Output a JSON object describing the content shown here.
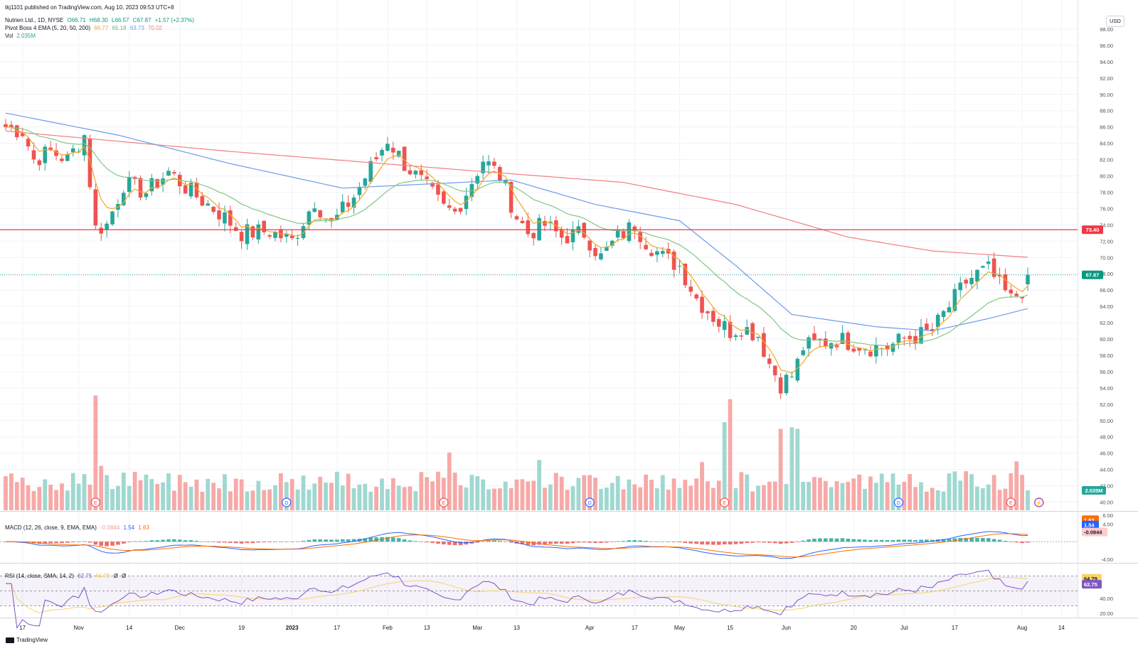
{
  "header": {
    "published": "tkj1101 published on TradingView.com, Aug 10, 2023 09:53 UTC+8",
    "symbol": "Nutrien Ltd., 1D, NYSE",
    "open": "O66.71",
    "high": "H68.30",
    "low": "L66.57",
    "close": "C67.87",
    "change": "+1.57 (+2.37%)",
    "ema_label": "Pivot Boss 4 EMA (5, 20, 50, 200)",
    "ema_values": [
      "66.77",
      "65.18",
      "63.73",
      "70.02"
    ],
    "vol_label": "Vol",
    "vol_value": "2.035M",
    "currency": "USD"
  },
  "macd_header": {
    "label": "MACD (12, 26, close, 9, EMA, EMA)",
    "values": [
      "-0.0844",
      "1.54",
      "1.63"
    ]
  },
  "rsi_header": {
    "label": "RSI (14, close, SMA, 14, 2)",
    "values": [
      "62.75",
      "64.79",
      "Ø",
      "Ø"
    ]
  },
  "footer": {
    "brand": "TradingView"
  },
  "colors": {
    "up": "#26a69a",
    "down": "#ef5350",
    "ema5": "#f5a623",
    "ema20": "#81c784",
    "ema50": "#6c9bea",
    "ema200": "#f27f7f",
    "hline": "#f23645",
    "rsi": "#7e57c2",
    "rsi_ma": "#f6d36a"
  },
  "chart_data": [
    {
      "type": "candlestick",
      "ylim": [
        39,
        100
      ],
      "y_ticks": [
        "98.00",
        "96.00",
        "94.00",
        "92.00",
        "90.00",
        "88.00",
        "86.00",
        "84.00",
        "82.00",
        "80.00",
        "78.00",
        "76.00",
        "74.00",
        "72.00",
        "70.00",
        "68.00",
        "66.00",
        "64.00",
        "62.00",
        "60.00",
        "58.00",
        "56.00",
        "54.00",
        "52.00",
        "50.00",
        "48.00",
        "46.00",
        "44.00",
        "42.00",
        "40.00"
      ],
      "x_labels": [
        {
          "label": "17",
          "i": 3
        },
        {
          "label": "Nov",
          "i": 13
        },
        {
          "label": "14",
          "i": 22
        },
        {
          "label": "Dec",
          "i": 31
        },
        {
          "label": "19",
          "i": 42
        },
        {
          "label": "2023",
          "i": 51
        },
        {
          "label": "17",
          "i": 59
        },
        {
          "label": "Feb",
          "i": 68
        },
        {
          "label": "13",
          "i": 75
        },
        {
          "label": "Mar",
          "i": 84
        },
        {
          "label": "13",
          "i": 91
        },
        {
          "label": "Apr",
          "i": 104
        },
        {
          "label": "17",
          "i": 112
        },
        {
          "label": "May",
          "i": 120
        },
        {
          "label": "15",
          "i": 129
        },
        {
          "label": "Jun",
          "i": 139
        },
        {
          "label": "20",
          "i": 151
        },
        {
          "label": "Jul",
          "i": 160
        },
        {
          "label": "17",
          "i": 169
        },
        {
          "label": "Aug",
          "i": 181
        },
        {
          "label": "14",
          "i": 188
        }
      ],
      "close_keypoints": [
        [
          0,
          86.0
        ],
        [
          3,
          85.5
        ],
        [
          5,
          82.0
        ],
        [
          8,
          83.0
        ],
        [
          11,
          82.0
        ],
        [
          14,
          85.0
        ],
        [
          16,
          73.5
        ],
        [
          18,
          74.0
        ],
        [
          21,
          79.0
        ],
        [
          25,
          78.0
        ],
        [
          29,
          80.5
        ],
        [
          33,
          78.0
        ],
        [
          38,
          75.5
        ],
        [
          42,
          73.0
        ],
        [
          47,
          73.2
        ],
        [
          51,
          72.0
        ],
        [
          55,
          77.0
        ],
        [
          58,
          74.0
        ],
        [
          62,
          77.5
        ],
        [
          65,
          81.0
        ],
        [
          68,
          84.5
        ],
        [
          71,
          81.5
        ],
        [
          75,
          78.5
        ],
        [
          78,
          76.0
        ],
        [
          80,
          75.5
        ],
        [
          82,
          78.0
        ],
        [
          85,
          82.0
        ],
        [
          88,
          80.0
        ],
        [
          91,
          75.0
        ],
        [
          93,
          73.0
        ],
        [
          96,
          74.0
        ],
        [
          99,
          72.5
        ],
        [
          103,
          73.0
        ],
        [
          106,
          70.0
        ],
        [
          109,
          72.5
        ],
        [
          112,
          74.0
        ],
        [
          114,
          72.0
        ],
        [
          117,
          70.0
        ],
        [
          120,
          69.0
        ],
        [
          123,
          65.0
        ],
        [
          125,
          63.5
        ],
        [
          127,
          62.0
        ],
        [
          129,
          61.0
        ],
        [
          131,
          61.5
        ],
        [
          134,
          60.5
        ],
        [
          136,
          57.0
        ],
        [
          138,
          54.5
        ],
        [
          140,
          55.5
        ],
        [
          141,
          57.0
        ],
        [
          142,
          59.0
        ],
        [
          145,
          59.5
        ],
        [
          148,
          60.0
        ],
        [
          151,
          59.5
        ],
        [
          154,
          59.0
        ],
        [
          157,
          59.0
        ],
        [
          160,
          60.0
        ],
        [
          163,
          60.5
        ],
        [
          165,
          61.0
        ],
        [
          167,
          63.0
        ],
        [
          169,
          65.0
        ],
        [
          171,
          67.0
        ],
        [
          173,
          68.0
        ],
        [
          175,
          68.5
        ],
        [
          177,
          66.5
        ],
        [
          179,
          64.8
        ],
        [
          181,
          66.0
        ],
        [
          182,
          67.87
        ]
      ],
      "ema_values_last": {
        "ema5": 66.77,
        "ema20": 65.18,
        "ema50": 63.73,
        "ema200": 70.02
      },
      "ema200_path": [
        [
          0,
          85.5
        ],
        [
          40,
          83.0
        ],
        [
          80,
          80.8
        ],
        [
          110,
          79.2
        ],
        [
          130,
          76.5
        ],
        [
          150,
          72.5
        ],
        [
          165,
          70.8
        ],
        [
          182,
          70.02
        ]
      ],
      "ema50_path": [
        [
          0,
          87.7
        ],
        [
          20,
          85.0
        ],
        [
          40,
          81.5
        ],
        [
          60,
          78.5
        ],
        [
          75,
          79.0
        ],
        [
          90,
          79.5
        ],
        [
          105,
          76.5
        ],
        [
          120,
          74.5
        ],
        [
          130,
          69.0
        ],
        [
          140,
          63.0
        ],
        [
          155,
          61.5
        ],
        [
          165,
          61.0
        ],
        [
          175,
          62.5
        ],
        [
          182,
          63.73
        ]
      ],
      "horizontal_line": {
        "price": 73.4,
        "label": "73.40"
      },
      "last_price": {
        "price": 67.87,
        "label": "67.87"
      }
    },
    {
      "type": "bar",
      "name": "Vol",
      "last_value_label": "2.035M",
      "spikes": [
        [
          16,
          54.5
        ],
        [
          17,
          45.0
        ],
        [
          79,
          46.8
        ],
        [
          95,
          45.8
        ],
        [
          124,
          45.5
        ],
        [
          128,
          50.9
        ],
        [
          129,
          54.0
        ],
        [
          140,
          50.2
        ],
        [
          141,
          50.0
        ],
        [
          138,
          50.0
        ],
        [
          180,
          45.6
        ]
      ],
      "event_markers": [
        {
          "i": 16,
          "kind": "E"
        },
        {
          "i": 50,
          "kind": "D"
        },
        {
          "i": 78,
          "kind": "E"
        },
        {
          "i": 104,
          "kind": "D"
        },
        {
          "i": 128,
          "kind": "E"
        },
        {
          "i": 159,
          "kind": "D"
        },
        {
          "i": 179,
          "kind": "E"
        },
        {
          "i": 184,
          "kind": "⚡"
        }
      ]
    },
    {
      "type": "line",
      "name": "MACD",
      "ylim": [
        -4.5,
        6.5
      ],
      "y_ticks": [
        "6.00",
        "4.00",
        "-4.00"
      ],
      "last_labels": {
        "signal": "1.63",
        "macd": "1.54",
        "hist": "-0.0844"
      }
    },
    {
      "type": "line",
      "name": "RSI",
      "ylim": [
        15,
        85
      ],
      "y_ticks": [
        "40.00",
        "20.00"
      ],
      "bands": [
        30,
        50,
        70
      ],
      "last_labels": {
        "rsi": "62.75",
        "ma": "64.79"
      }
    }
  ]
}
